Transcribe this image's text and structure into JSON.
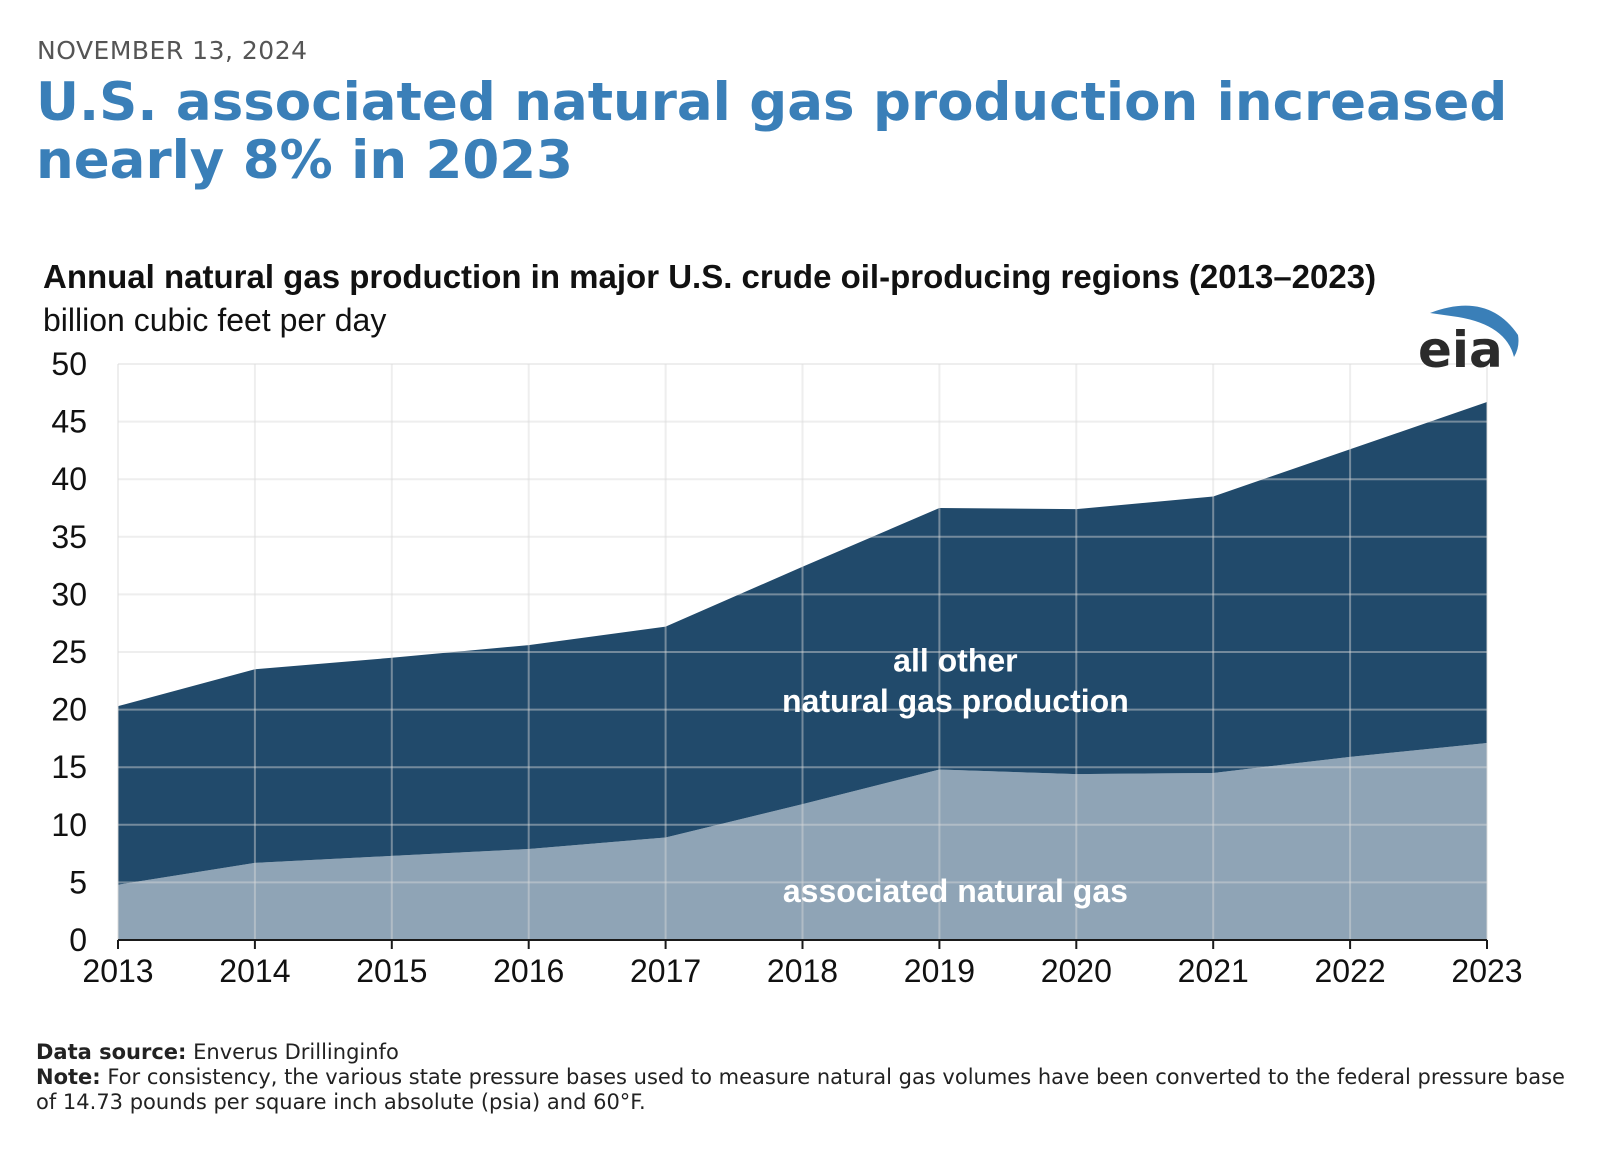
{
  "header": {
    "date": "NOVEMBER 13, 2024",
    "headline": "U.S. associated natural gas production increased nearly 8% in 2023"
  },
  "logo": {
    "text": "eia",
    "icon": "eia-logo-icon",
    "arc_color": "#3a7fb8",
    "text_color": "#2b2b2b"
  },
  "chart_data": {
    "type": "area",
    "stacked": true,
    "title": "Annual natural gas production in major U.S. crude oil-producing regions (2013–2023)",
    "units": "billion cubic feet per day",
    "x": [
      2013,
      2014,
      2015,
      2016,
      2017,
      2018,
      2019,
      2020,
      2021,
      2022,
      2023
    ],
    "x_tick_labels": [
      "2013",
      "2014",
      "2015",
      "2016",
      "2017",
      "2018",
      "2019",
      "2020",
      "2021",
      "2022",
      "2023"
    ],
    "ylim": [
      0,
      50
    ],
    "y_ticks": [
      0,
      5,
      10,
      15,
      20,
      25,
      30,
      35,
      40,
      45,
      50
    ],
    "y_tick_labels": [
      "0",
      "5",
      "10",
      "15",
      "20",
      "25",
      "30",
      "35",
      "40",
      "45",
      "50"
    ],
    "grid": true,
    "series": [
      {
        "label_lines": [
          "associated natural gas"
        ],
        "color": "#8fa4b6",
        "values": [
          4.8,
          6.7,
          7.3,
          7.9,
          8.9,
          11.8,
          14.8,
          14.4,
          14.5,
          15.9,
          17.1
        ]
      },
      {
        "label_lines": [
          "all other",
          "natural gas production"
        ],
        "color": "#214a6b",
        "values": [
          15.5,
          16.8,
          17.2,
          17.7,
          18.3,
          20.6,
          22.7,
          23.0,
          24.0,
          26.7,
          29.6
        ]
      }
    ]
  },
  "footer": {
    "source_label": "Data source:",
    "source_text": "Enverus Drillinginfo",
    "note_label": "Note:",
    "note_text": "For consistency, the various state pressure bases used to measure natural gas volumes have been converted to the federal pressure base of 14.73 pounds per square inch absolute (psia) and 60°F."
  }
}
